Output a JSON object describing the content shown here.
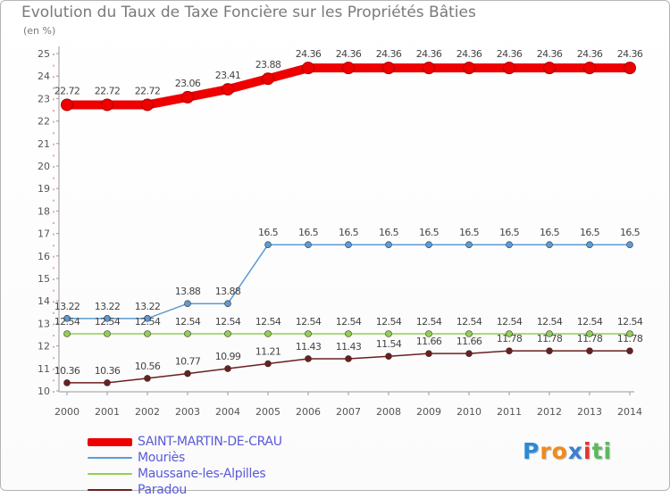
{
  "chart_data": {
    "type": "line",
    "title": "Evolution du Taux de Taxe Foncière sur les Propriétés Bâties",
    "unit_label": "(en %)",
    "xlabel": "",
    "ylabel": "(en %)",
    "categories": [
      "2000",
      "2001",
      "2002",
      "2003",
      "2004",
      "2005",
      "2006",
      "2007",
      "2008",
      "2009",
      "2010",
      "2011",
      "2012",
      "2013",
      "2014"
    ],
    "ylim": [
      10,
      25
    ],
    "y_ticks": [
      10,
      11,
      12,
      13,
      14,
      15,
      16,
      17,
      18,
      19,
      20,
      21,
      22,
      23,
      24,
      25
    ],
    "series": [
      {
        "name": "SAINT-MARTIN-DE-CRAU",
        "color": "#ee0000",
        "values": [
          22.72,
          22.72,
          22.72,
          23.06,
          23.41,
          23.88,
          24.36,
          24.36,
          24.36,
          24.36,
          24.36,
          24.36,
          24.36,
          24.36,
          24.36
        ],
        "labels": [
          "22.72",
          "22.72",
          "22.72",
          "23.06",
          "23.41",
          "23.88",
          "24.36",
          "24.36",
          "24.36",
          "24.36",
          "24.36",
          "24.36",
          "24.36",
          "24.36",
          "24.36"
        ],
        "emphasis": "thick"
      },
      {
        "name": "Mouriès",
        "color": "#5b9bd5",
        "values": [
          13.22,
          13.22,
          13.22,
          13.88,
          13.88,
          16.5,
          16.5,
          16.5,
          16.5,
          16.5,
          16.5,
          16.5,
          16.5,
          16.5,
          16.5
        ],
        "labels": [
          "13.22",
          "13.22",
          "13.22",
          "13.88",
          "13.88",
          "16.5",
          "16.5",
          "16.5",
          "16.5",
          "16.5",
          "16.5",
          "16.5",
          "16.5",
          "16.5",
          "16.5"
        ],
        "emphasis": "normal"
      },
      {
        "name": "Maussane-les-Alpilles",
        "color": "#92d050",
        "values": [
          12.54,
          12.54,
          12.54,
          12.54,
          12.54,
          12.54,
          12.54,
          12.54,
          12.54,
          12.54,
          12.54,
          12.54,
          12.54,
          12.54,
          12.54
        ],
        "labels": [
          "12.54",
          "12.54",
          "12.54",
          "12.54",
          "12.54",
          "12.54",
          "12.54",
          "12.54",
          "12.54",
          "12.54",
          "12.54",
          "12.54",
          "12.54",
          "12.54",
          "12.54"
        ],
        "emphasis": "normal"
      },
      {
        "name": "Paradou",
        "color": "#6b1f1f",
        "values": [
          10.36,
          10.36,
          10.56,
          10.77,
          10.99,
          11.21,
          11.43,
          11.43,
          11.54,
          11.66,
          11.66,
          11.78,
          11.78,
          11.78,
          11.78
        ],
        "labels": [
          "10.36",
          "10.36",
          "10.56",
          "10.77",
          "10.99",
          "11.21",
          "11.43",
          "11.43",
          "11.54",
          "11.66",
          "11.66",
          "11.78",
          "11.78",
          "11.78",
          "11.78"
        ],
        "emphasis": "normal"
      }
    ],
    "grid": false,
    "legend_position": "bottom-left"
  },
  "logo": {
    "letters": [
      "P",
      "r",
      "o",
      "x",
      "i",
      "t",
      "i"
    ],
    "colors": [
      "#2b8ad6",
      "#f08a1c",
      "#f08a1c",
      "#3a7fd0",
      "#e83030",
      "#5cb85c",
      "#5cb85c"
    ]
  }
}
